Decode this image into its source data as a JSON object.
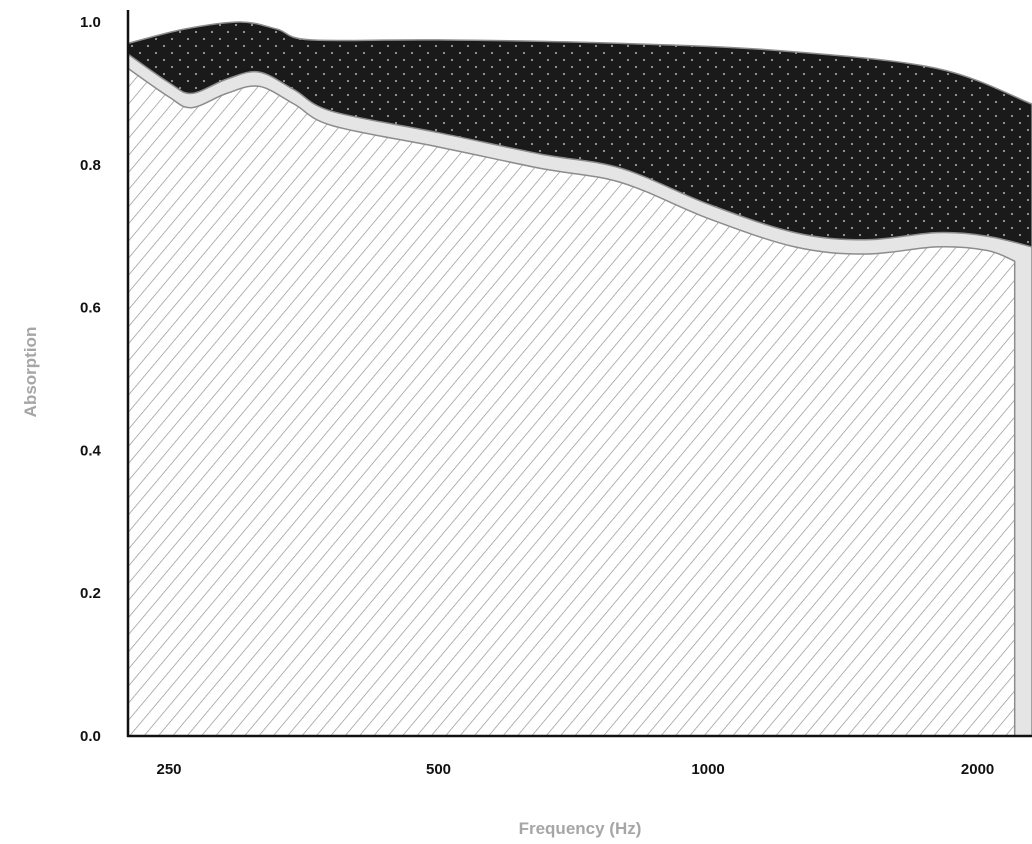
{
  "chart_data": {
    "type": "area",
    "xlabel": "Frequency (Hz)",
    "ylabel": "Absorption",
    "x_scale": "log",
    "xlim": [
      225,
      2300
    ],
    "ylim": [
      0,
      1.0
    ],
    "x_ticks": [
      {
        "value": 250,
        "label": "250"
      },
      {
        "value": 500,
        "label": "500"
      },
      {
        "value": 1000,
        "label": "1000"
      },
      {
        "value": 2000,
        "label": "2000"
      }
    ],
    "y_ticks": [
      {
        "value": 0.0,
        "label": "0.0"
      },
      {
        "value": 0.2,
        "label": "0.2"
      },
      {
        "value": 0.4,
        "label": "0.4"
      },
      {
        "value": 0.6,
        "label": "0.6"
      },
      {
        "value": 0.8,
        "label": "0.8"
      },
      {
        "value": 1.0,
        "label": "1.0"
      }
    ],
    "grid": false,
    "legend": "none",
    "series": [
      {
        "pattern": "dots",
        "fill_color": "#1a1a1a",
        "points": [
          [
            225,
            0.97
          ],
          [
            260,
            0.99
          ],
          [
            300,
            1.0
          ],
          [
            330,
            0.99
          ],
          [
            360,
            0.975
          ],
          [
            500,
            0.975
          ],
          [
            800,
            0.97
          ],
          [
            1200,
            0.96
          ],
          [
            1800,
            0.935
          ],
          [
            2300,
            0.885
          ]
        ]
      },
      {
        "pattern": "solid",
        "fill_color": "#e5e5e5",
        "points": [
          [
            225,
            0.955
          ],
          [
            250,
            0.915
          ],
          [
            265,
            0.9
          ],
          [
            290,
            0.92
          ],
          [
            315,
            0.93
          ],
          [
            345,
            0.905
          ],
          [
            380,
            0.875
          ],
          [
            500,
            0.845
          ],
          [
            650,
            0.815
          ],
          [
            800,
            0.795
          ],
          [
            1000,
            0.745
          ],
          [
            1250,
            0.705
          ],
          [
            1500,
            0.695
          ],
          [
            1800,
            0.705
          ],
          [
            2050,
            0.7
          ],
          [
            2300,
            0.685
          ]
        ]
      },
      {
        "pattern": "hatch",
        "fill_color": "#ffffff",
        "points": [
          [
            225,
            0.935
          ],
          [
            250,
            0.895
          ],
          [
            265,
            0.88
          ],
          [
            290,
            0.9
          ],
          [
            315,
            0.91
          ],
          [
            345,
            0.885
          ],
          [
            380,
            0.855
          ],
          [
            500,
            0.825
          ],
          [
            650,
            0.795
          ],
          [
            800,
            0.775
          ],
          [
            1000,
            0.725
          ],
          [
            1250,
            0.685
          ],
          [
            1500,
            0.675
          ],
          [
            1800,
            0.685
          ],
          [
            2050,
            0.68
          ],
          [
            2200,
            0.665
          ]
        ]
      }
    ]
  }
}
